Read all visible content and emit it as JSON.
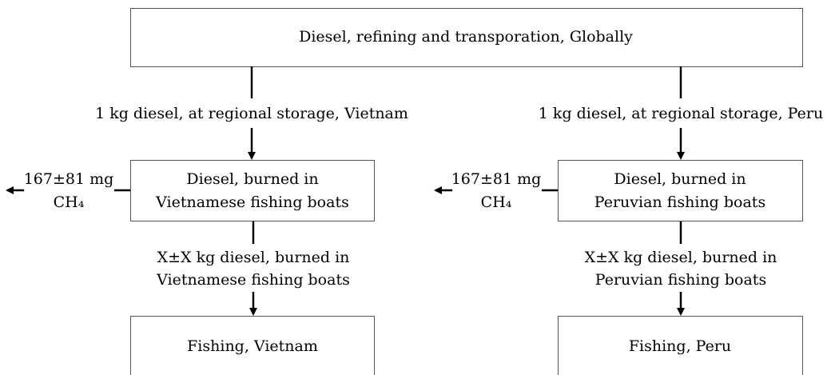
{
  "nodes": [
    {
      "label": [
        "Diesel, refining and transporation, Globally"
      ]
    },
    {
      "label": [
        "Diesel, burned in",
        "Vietnamese fishing boats"
      ]
    },
    {
      "label": [
        "Diesel, burned in",
        "Peruvian fishing boats"
      ]
    },
    {
      "label": [
        "Fishing, Vietnam"
      ]
    },
    {
      "label": [
        "Fishing, Peru"
      ]
    }
  ],
  "edges": [
    {
      "label": [
        "1 kg diesel, at regional storage, Vietnam"
      ]
    },
    {
      "label": [
        "1 kg diesel, at regional storage, Peru"
      ]
    },
    {
      "label": [
        "X±X kg diesel, burned in",
        "Vietnamese fishing boats"
      ]
    },
    {
      "label": [
        "X±X kg diesel, burned in",
        "Peruvian fishing boats"
      ]
    }
  ],
  "emissions": [
    {
      "label": [
        "167±81 mg",
        "CH₄"
      ]
    },
    {
      "label": [
        "167±81 mg",
        "CH₄"
      ]
    }
  ]
}
